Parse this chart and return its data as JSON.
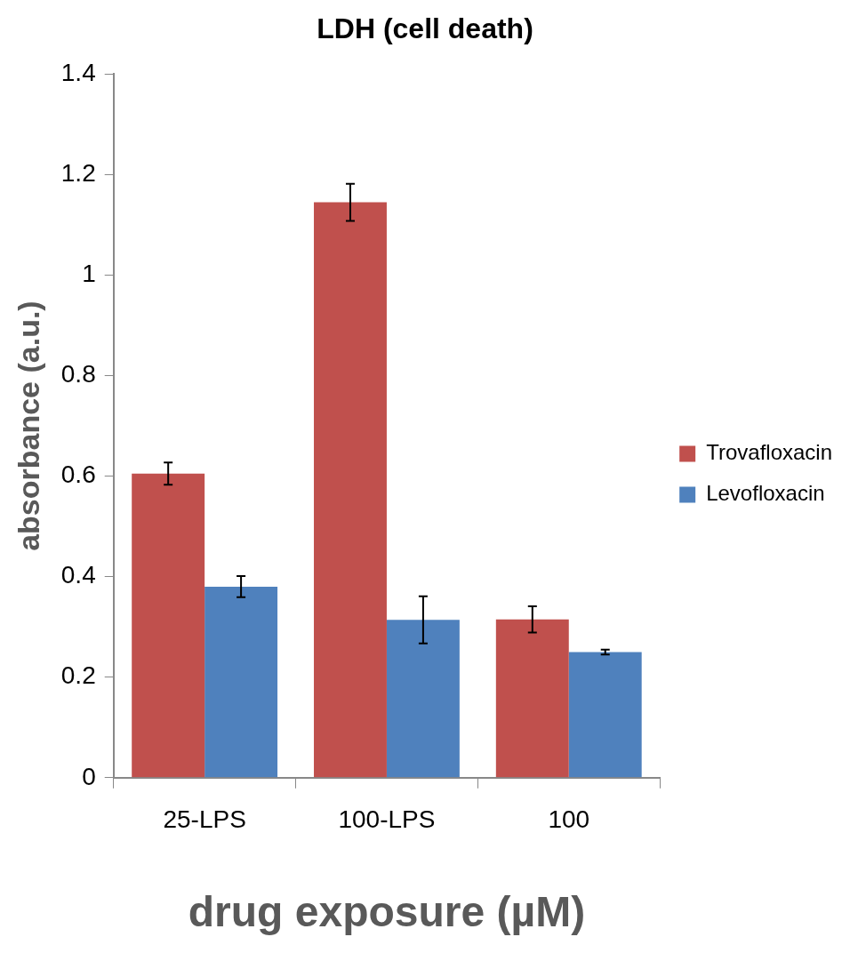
{
  "chart_data": {
    "type": "bar",
    "title": "LDH (cell death)",
    "xlabel": "drug exposure (µM)",
    "ylabel": "absorbance (a.u.)",
    "categories": [
      "25-LPS",
      "100-LPS",
      "100"
    ],
    "series": [
      {
        "name": "Trovafloxacin",
        "color": "#c0504d",
        "values": [
          0.605,
          1.145,
          0.315
        ],
        "errors": [
          0.022,
          0.037,
          0.026
        ]
      },
      {
        "name": "Levofloxacin",
        "color": "#4f81bd",
        "values": [
          0.38,
          0.314,
          0.25
        ],
        "errors": [
          0.021,
          0.047,
          0.005
        ]
      }
    ],
    "ylim": [
      0,
      1.4
    ],
    "yticks": [
      0,
      0.2,
      0.4,
      0.6,
      0.8,
      1,
      1.2,
      1.4
    ],
    "grid": false,
    "legend": "right"
  }
}
